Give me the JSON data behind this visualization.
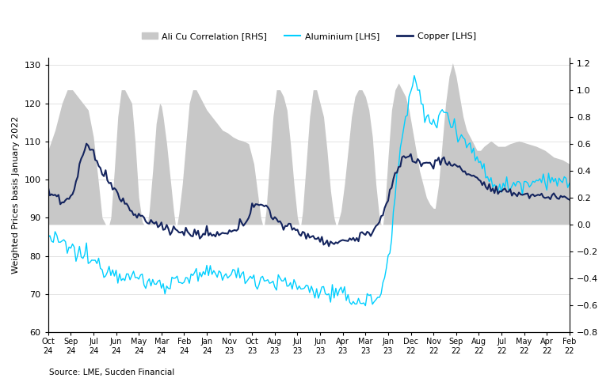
{
  "ylabel_left": "Weighted Prices basis January 2022",
  "source": "Source: LME, Sucden Financial",
  "lhs_min": 60,
  "lhs_max": 132,
  "rhs_min": -0.8,
  "rhs_max": 1.24,
  "yticks_left": [
    60,
    70,
    80,
    90,
    100,
    110,
    120,
    130
  ],
  "yticks_right": [
    -0.8,
    -0.6,
    -0.4,
    -0.2,
    0.0,
    0.2,
    0.4,
    0.6,
    0.8,
    1.0,
    1.2
  ],
  "bar_color": "#c8c8c8",
  "aluminium_color": "#00cfff",
  "copper_color": "#14245e",
  "tick_labels_month": [
    "Oct",
    "Sep",
    "Jul",
    "Jun",
    "May",
    "Mar",
    "Feb",
    "Jan",
    "Nov",
    "Oct",
    "Aug",
    "Jul",
    "Jun",
    "Apr",
    "Mar",
    "Jan",
    "Dec",
    "Nov",
    "Sep",
    "Aug",
    "Jul",
    "May",
    "Apr",
    "Feb"
  ],
  "tick_labels_year": [
    "24",
    "24",
    "24",
    "24",
    "24",
    "24",
    "24",
    "24",
    "23",
    "23",
    "23",
    "23",
    "23",
    "23",
    "23",
    "23",
    "22",
    "22",
    "22",
    "22",
    "22",
    "22",
    "22",
    "22"
  ]
}
